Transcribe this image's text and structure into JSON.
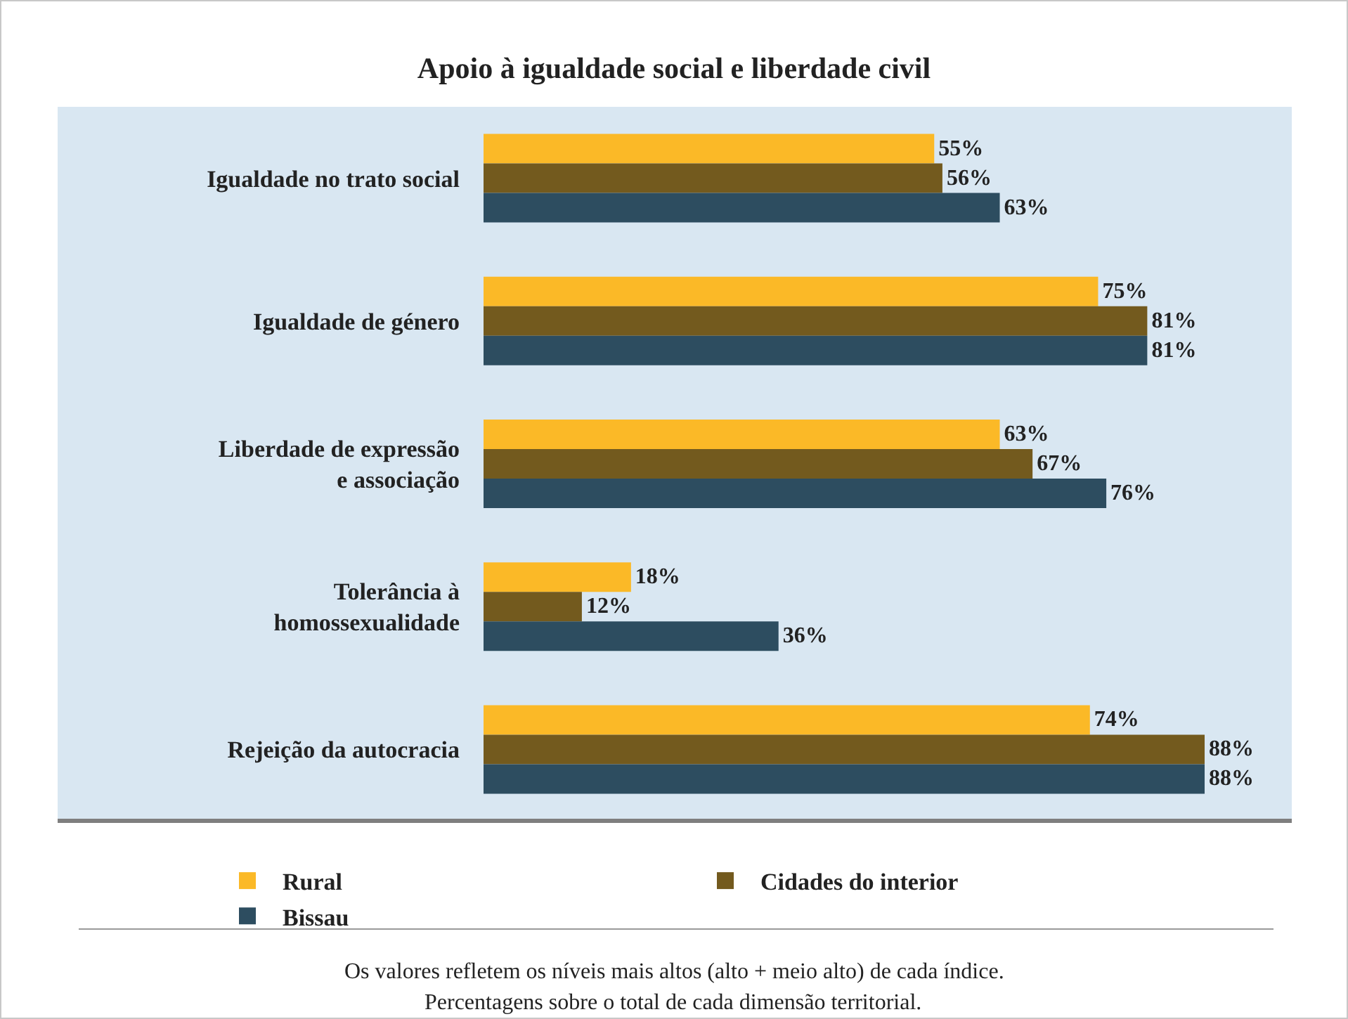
{
  "chart_data": {
    "type": "bar",
    "orientation": "horizontal",
    "title": "Apoio à igualdade social e liberdade civil",
    "categories": [
      "Igualdade no trato social",
      "Igualdade de género",
      "Liberdade de expressão e associação",
      "Tolerância à homossexualidade",
      "Rejeição da autocracia"
    ],
    "series": [
      {
        "name": "Rural",
        "color": "#fbb927",
        "values": [
          55,
          75,
          63,
          18,
          74
        ],
        "value_labels": [
          "55%",
          "75%",
          "63%",
          "18%",
          "74%"
        ]
      },
      {
        "name": "Cidades do interior",
        "color": "#735a1e",
        "values": [
          56,
          81,
          67,
          12,
          88
        ],
        "value_labels": [
          "56%",
          "81%",
          "67%",
          "12%",
          "88%"
        ]
      },
      {
        "name": "Bissau",
        "color": "#2d4d60",
        "values": [
          63,
          81,
          76,
          36,
          88
        ],
        "value_labels": [
          "63%",
          "81%",
          "76%",
          "36%",
          "88%"
        ]
      }
    ],
    "legend": "bottom",
    "grid": false,
    "annotations": [
      "Os valores refletem os níveis mais altos (alto + meio alto) de cada índice.",
      "Percentagens sobre o total de cada dimensão territorial."
    ]
  }
}
